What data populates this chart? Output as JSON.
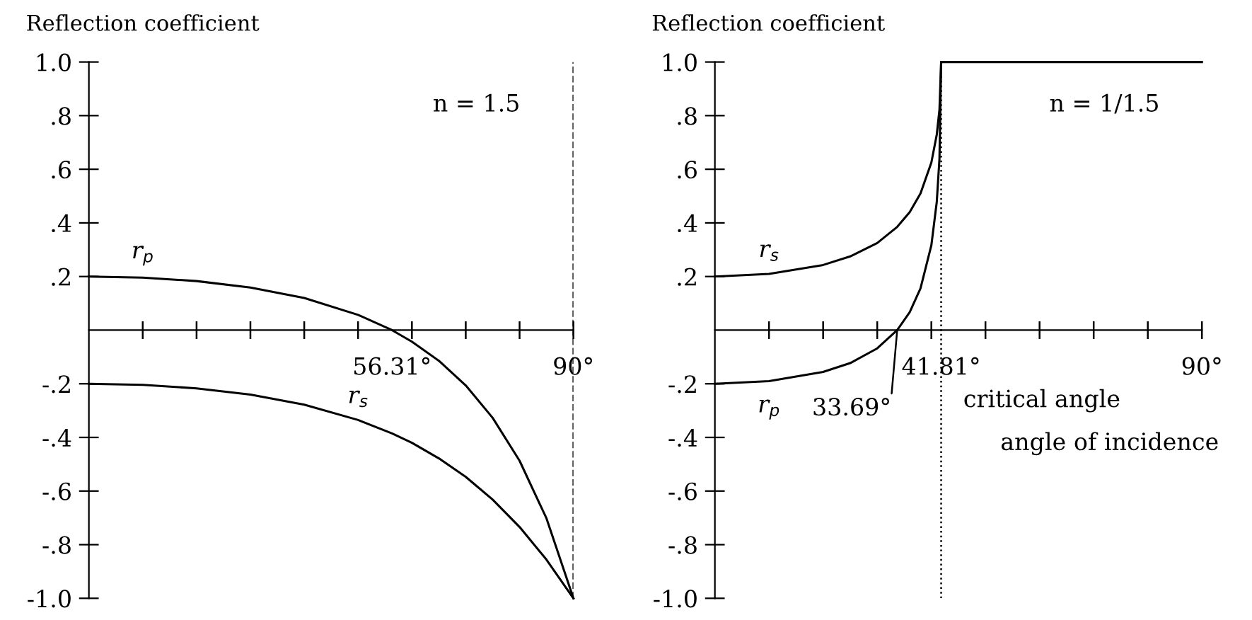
{
  "chart_data": [
    {
      "type": "line",
      "ylabel": "Reflection coefficient",
      "xlim": [
        0,
        90
      ],
      "ylim": [
        -1.0,
        1.0
      ],
      "xticks": [
        {
          "value": 10,
          "label": null
        },
        {
          "value": 20,
          "label": null
        },
        {
          "value": 30,
          "label": null
        },
        {
          "value": 40,
          "label": null
        },
        {
          "value": 50,
          "label": null
        },
        {
          "value": 56.31,
          "label": "56.31°"
        },
        {
          "value": 60,
          "label": null
        },
        {
          "value": 70,
          "label": null
        },
        {
          "value": 80,
          "label": null
        },
        {
          "value": 90,
          "label": "90°"
        }
      ],
      "yticks": [
        {
          "value": 1.0,
          "label": "1.0"
        },
        {
          "value": 0.8,
          "label": ".8"
        },
        {
          "value": 0.6,
          "label": ".6"
        },
        {
          "value": 0.4,
          "label": ".4"
        },
        {
          "value": 0.2,
          "label": ".2"
        },
        {
          "value": -0.2,
          "label": "-.2"
        },
        {
          "value": -0.4,
          "label": "-.4"
        },
        {
          "value": -0.6,
          "label": "-.6"
        },
        {
          "value": -0.8,
          "label": "-.8"
        },
        {
          "value": -1.0,
          "label": "-1.0"
        }
      ],
      "series": [
        {
          "name": "r$_{p}$",
          "color": "#000000",
          "x": [
            0,
            10,
            20,
            30,
            40,
            50,
            56.31,
            60,
            65,
            70,
            75,
            80,
            85,
            90
          ],
          "values": [
            0.2,
            0.196,
            0.183,
            0.159,
            0.12,
            0.057,
            0,
            -0.043,
            -0.114,
            -0.206,
            -0.327,
            -0.487,
            -0.702,
            -1.0
          ]
        },
        {
          "name": "r$_{s}$",
          "color": "#000000",
          "x": [
            0,
            10,
            20,
            30,
            40,
            50,
            56.31,
            60,
            65,
            70,
            75,
            80,
            85,
            90
          ],
          "values": [
            -0.2,
            -0.204,
            -0.217,
            -0.24,
            -0.278,
            -0.335,
            -0.385,
            -0.42,
            -0.478,
            -0.547,
            -0.632,
            -0.734,
            -0.856,
            -1.0
          ]
        }
      ],
      "ref_lines": [
        {
          "axis": "x",
          "value": 90,
          "label": null,
          "color": "#000000",
          "line_style": "dashed"
        }
      ],
      "annotations": [
        "n = 1.5"
      ],
      "marker": "none",
      "line_style": "solid",
      "grid": false,
      "legend": false
    },
    {
      "type": "line",
      "ylabel": "Reflection coefficient",
      "xlabel": "angle of incidence",
      "xlim": [
        0,
        90
      ],
      "ylim": [
        -1.0,
        1.0
      ],
      "xticks": [
        {
          "value": 10,
          "label": null
        },
        {
          "value": 20,
          "label": null
        },
        {
          "value": 30,
          "label": null
        },
        {
          "value": 40,
          "label": null
        },
        {
          "value": 41.81,
          "label": "41.81°"
        },
        {
          "value": 50,
          "label": null
        },
        {
          "value": 60,
          "label": null
        },
        {
          "value": 70,
          "label": null
        },
        {
          "value": 80,
          "label": null
        },
        {
          "value": 90,
          "label": "90°"
        }
      ],
      "yticks": [
        {
          "value": 1.0,
          "label": "1.0"
        },
        {
          "value": 0.8,
          "label": ".8"
        },
        {
          "value": 0.6,
          "label": ".6"
        },
        {
          "value": 0.4,
          "label": ".4"
        },
        {
          "value": 0.2,
          "label": ".2"
        },
        {
          "value": -0.2,
          "label": "-.2"
        },
        {
          "value": -0.4,
          "label": "-.4"
        },
        {
          "value": -0.6,
          "label": "-.6"
        },
        {
          "value": -0.8,
          "label": "-.8"
        },
        {
          "value": -1.0,
          "label": "-1.0"
        }
      ],
      "series": [
        {
          "name": "r$_{s}$",
          "color": "#000000",
          "x": [
            0,
            10,
            20,
            25,
            30,
            33.69,
            36,
            38,
            40,
            41,
            41.5,
            41.81,
            90
          ],
          "values": [
            0.2,
            0.21,
            0.243,
            0.275,
            0.325,
            0.385,
            0.44,
            0.51,
            0.625,
            0.729,
            0.822,
            1.0,
            1.0
          ]
        },
        {
          "name": "r$_{p}$",
          "color": "#000000",
          "x": [
            0,
            10,
            20,
            25,
            30,
            33.69,
            36,
            38,
            40,
            41,
            41.5,
            41.81
          ],
          "values": [
            -0.2,
            -0.19,
            -0.156,
            -0.123,
            -0.068,
            0,
            0.067,
            0.156,
            0.316,
            0.478,
            0.639,
            1.0
          ]
        }
      ],
      "ref_lines": [
        {
          "axis": "x",
          "value": 41.81,
          "label": null,
          "color": "#000000",
          "line_style": "dotted"
        }
      ],
      "annotations": [
        "n = 1/1.5",
        "critical angle",
        {
          "text": "33.69°",
          "x": 33.69,
          "y": 0
        }
      ],
      "marker": "none",
      "line_style": "solid",
      "grid": false,
      "legend": false
    }
  ]
}
